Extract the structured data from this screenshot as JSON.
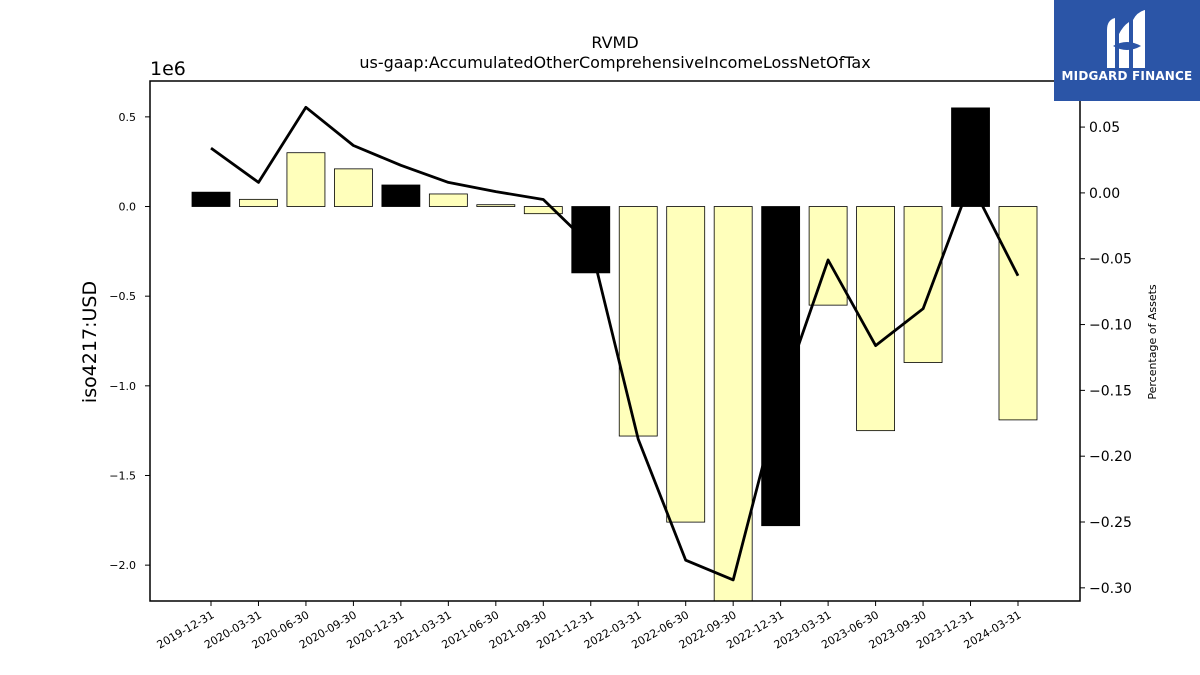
{
  "chart_data": {
    "type": "bar",
    "title": "RVMD",
    "subtitle": "us-gaap:AccumulatedOtherComprehensiveIncomeLossNetOfTax",
    "ylabel": "iso4217:USD",
    "y_offset_label": "1e6",
    "y2label": "Percentage of Assets",
    "categories": [
      "2019-12-31",
      "2020-03-31",
      "2020-06-30",
      "2020-09-30",
      "2020-12-31",
      "2021-03-31",
      "2021-06-30",
      "2021-09-30",
      "2021-12-31",
      "2022-03-31",
      "2022-06-30",
      "2022-09-30",
      "2022-12-31",
      "2023-03-31",
      "2023-06-30",
      "2023-09-30",
      "2023-12-31",
      "2024-03-31"
    ],
    "values": [
      0.08,
      0.04,
      0.3,
      0.21,
      0.12,
      0.07,
      0.01,
      -0.04,
      -0.37,
      -1.28,
      -1.76,
      -2.2,
      -1.78,
      -0.55,
      -1.25,
      -0.87,
      0.55,
      -1.19
    ],
    "bar_colors": [
      "#000000",
      "#ffffbb",
      "#ffffbb",
      "#ffffbb",
      "#000000",
      "#ffffbb",
      "#ffffbb",
      "#ffffbb",
      "#000000",
      "#ffffbb",
      "#ffffbb",
      "#ffffbb",
      "#000000",
      "#ffffbb",
      "#ffffbb",
      "#ffffbb",
      "#000000",
      "#ffffbb"
    ],
    "line_series": {
      "axis": "right",
      "values": [
        0.034,
        0.008,
        0.065,
        0.036,
        0.021,
        0.008,
        0.001,
        -0.005,
        -0.04,
        -0.187,
        -0.279,
        -0.294,
        -0.155,
        -0.051,
        -0.116,
        -0.088,
        0.008,
        -0.063
      ]
    },
    "ylim": [
      -2.2,
      0.7
    ],
    "y2lim": [
      -0.31,
      0.085
    ],
    "yticks": [
      "0.5",
      "0.0",
      "−0.5",
      "−1.0",
      "−1.5",
      "−2.0"
    ],
    "ytick_values": [
      0.5,
      0.0,
      -0.5,
      -1.0,
      -1.5,
      -2.0
    ],
    "y2ticks": [
      "0.05",
      "0.00",
      "−0.05",
      "−0.10",
      "−0.15",
      "−0.20",
      "−0.25",
      "−0.30"
    ],
    "y2tick_values": [
      0.05,
      0.0,
      -0.05,
      -0.1,
      -0.15,
      -0.2,
      -0.25,
      -0.3
    ],
    "grid": false,
    "colors": {
      "highlight_bar": "#000000",
      "normal_bar": "#ffffbb",
      "line": "#000000"
    }
  },
  "logo": {
    "text": "MIDGARD FINANCE"
  }
}
